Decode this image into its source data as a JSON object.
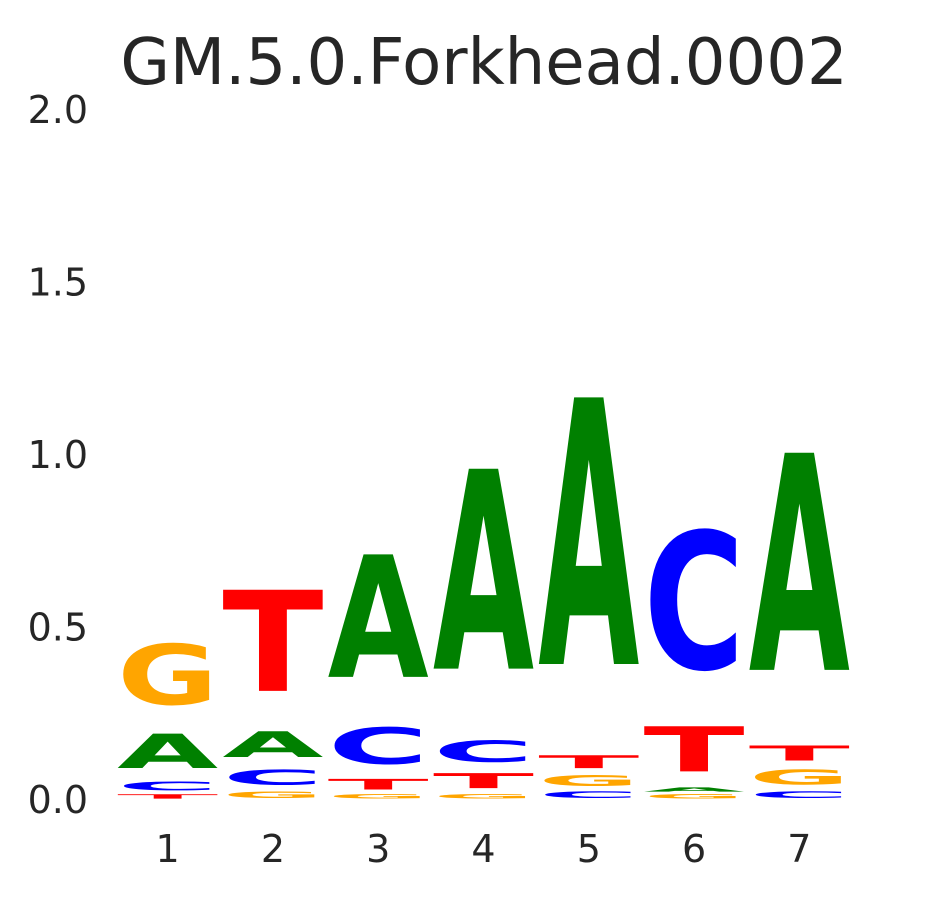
{
  "chart_data": {
    "type": "sequence-logo",
    "title": "GM.5.0.Forkhead.0002",
    "xlabel": "",
    "ylabel": "",
    "ylim": [
      0,
      2
    ],
    "y_ticks": [
      "0.0",
      "0.5",
      "1.0",
      "1.5",
      "2.0"
    ],
    "y_tick_values": [
      0,
      0.5,
      1.0,
      1.5,
      2.0
    ],
    "x_ticks": [
      "1",
      "2",
      "3",
      "4",
      "5",
      "6",
      "7"
    ],
    "colors": {
      "A": "#008000",
      "C": "#0000ff",
      "G": "#ffa500",
      "T": "#ff0000"
    },
    "positions": [
      {
        "position": "1",
        "letters": [
          {
            "base": "T",
            "height": 0.02
          },
          {
            "base": "C",
            "height": 0.04
          },
          {
            "base": "A",
            "height": 0.16
          },
          {
            "base": "G",
            "height": 0.28
          }
        ]
      },
      {
        "position": "2",
        "letters": [
          {
            "base": "G",
            "height": 0.03
          },
          {
            "base": "C",
            "height": 0.07
          },
          {
            "base": "A",
            "height": 0.12
          },
          {
            "base": "T",
            "height": 0.47
          }
        ]
      },
      {
        "position": "3",
        "letters": [
          {
            "base": "G",
            "height": 0.02
          },
          {
            "base": "T",
            "height": 0.05
          },
          {
            "base": "C",
            "height": 0.17
          },
          {
            "base": "A",
            "height": 0.57
          }
        ]
      },
      {
        "position": "4",
        "letters": [
          {
            "base": "G",
            "height": 0.02
          },
          {
            "base": "T",
            "height": 0.07
          },
          {
            "base": "C",
            "height": 0.1
          },
          {
            "base": "A",
            "height": 0.93
          }
        ]
      },
      {
        "position": "5",
        "letters": [
          {
            "base": "C",
            "height": 0.03
          },
          {
            "base": "G",
            "height": 0.05
          },
          {
            "base": "T",
            "height": 0.06
          },
          {
            "base": "A",
            "height": 1.24
          }
        ]
      },
      {
        "position": "6",
        "letters": [
          {
            "base": "G",
            "height": 0.02
          },
          {
            "base": "A",
            "height": 0.02
          },
          {
            "base": "T",
            "height": 0.21
          },
          {
            "base": "C",
            "height": 0.64
          }
        ]
      },
      {
        "position": "7",
        "letters": [
          {
            "base": "C",
            "height": 0.03
          },
          {
            "base": "G",
            "height": 0.07
          },
          {
            "base": "T",
            "height": 0.07
          },
          {
            "base": "A",
            "height": 1.01
          }
        ]
      }
    ]
  }
}
